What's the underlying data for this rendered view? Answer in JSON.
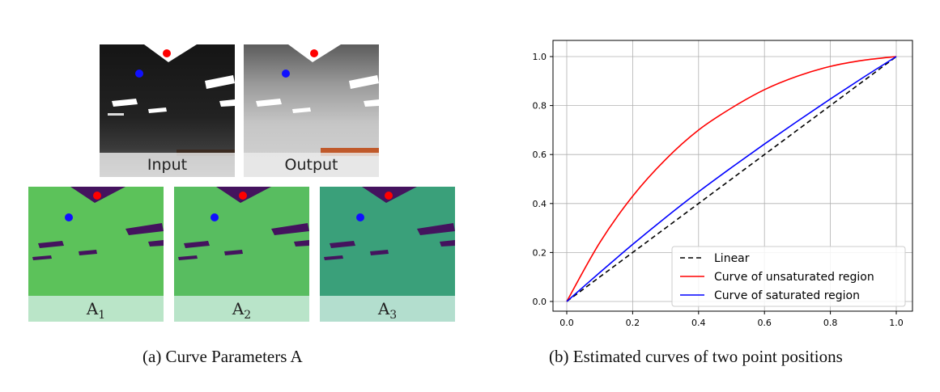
{
  "figure_a": {
    "photos": [
      {
        "id": "input",
        "label": "Input"
      },
      {
        "id": "output",
        "label": "Output"
      }
    ],
    "maps": [
      {
        "id": "A1",
        "base": "A",
        "sub": "1"
      },
      {
        "id": "A2",
        "base": "A",
        "sub": "2"
      },
      {
        "id": "A3",
        "base": "A",
        "sub": "3"
      }
    ],
    "point_colors": {
      "unsaturated": "#ff0000",
      "saturated": "#1010ff"
    },
    "caption": "(a) Curve Parameters A"
  },
  "figure_b": {
    "caption": "(b) Estimated curves of two point positions"
  },
  "chart_data": {
    "type": "line",
    "title": "",
    "xlabel": "",
    "ylabel": "",
    "xlim": [
      0.0,
      1.0
    ],
    "ylim": [
      0.0,
      1.0
    ],
    "xticks": [
      "0.0",
      "0.2",
      "0.4",
      "0.6",
      "0.8",
      "1.0"
    ],
    "yticks": [
      "0.0",
      "0.2",
      "0.4",
      "0.6",
      "0.8",
      "1.0"
    ],
    "grid": true,
    "legend_position": "lower-right",
    "series": [
      {
        "name": "Linear",
        "color": "#000000",
        "dash": "dashed",
        "x": [
          0.0,
          0.2,
          0.4,
          0.6,
          0.8,
          1.0
        ],
        "y": [
          0.0,
          0.2,
          0.4,
          0.6,
          0.8,
          1.0
        ]
      },
      {
        "name": "Curve of unsaturated region",
        "color": "#ff0000",
        "dash": "solid",
        "x": [
          0.0,
          0.1,
          0.2,
          0.3,
          0.4,
          0.5,
          0.6,
          0.7,
          0.8,
          0.9,
          1.0
        ],
        "y": [
          0.0,
          0.24,
          0.43,
          0.58,
          0.7,
          0.79,
          0.865,
          0.92,
          0.96,
          0.985,
          1.0
        ]
      },
      {
        "name": "Curve of saturated region",
        "color": "#0000ff",
        "dash": "solid",
        "x": [
          0.0,
          0.1,
          0.2,
          0.3,
          0.4,
          0.5,
          0.6,
          0.7,
          0.8,
          0.9,
          1.0
        ],
        "y": [
          0.0,
          0.118,
          0.233,
          0.343,
          0.448,
          0.547,
          0.643,
          0.736,
          0.827,
          0.915,
          1.0
        ]
      }
    ]
  }
}
